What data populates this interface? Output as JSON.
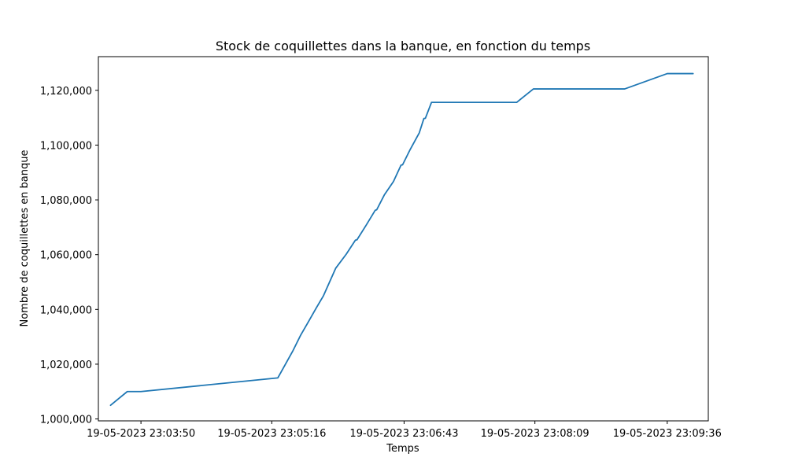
{
  "chart_data": {
    "type": "line",
    "title": "Stock de coquillettes dans la banque, en fonction du temps",
    "xlabel": "Temps",
    "ylabel": "Nombre de coquillettes en banque",
    "x_axis": {
      "scale": "time",
      "range": [
        "19-05-2023 23:03:22",
        "19-05-2023 23:10:03"
      ],
      "ticks": [
        {
          "value": "19-05-2023 23:03:50",
          "label": "19-05-2023 23:03:50"
        },
        {
          "value": "19-05-2023 23:05:16",
          "label": "19-05-2023 23:05:16"
        },
        {
          "value": "19-05-2023 23:06:43",
          "label": "19-05-2023 23:06:43"
        },
        {
          "value": "19-05-2023 23:08:09",
          "label": "19-05-2023 23:08:09"
        },
        {
          "value": "19-05-2023 23:09:36",
          "label": "19-05-2023 23:09:36"
        }
      ]
    },
    "y_axis": {
      "scale": "linear",
      "range": [
        999300,
        1132300
      ],
      "ticks": [
        {
          "value": 1000000,
          "label": "1,000,000"
        },
        {
          "value": 1020000,
          "label": "1,020,000"
        },
        {
          "value": 1040000,
          "label": "1,040,000"
        },
        {
          "value": 1060000,
          "label": "1,060,000"
        },
        {
          "value": 1080000,
          "label": "1,080,000"
        },
        {
          "value": 1100000,
          "label": "1,100,000"
        },
        {
          "value": 1120000,
          "label": "1,120,000"
        }
      ]
    },
    "grid": false,
    "legend": "none",
    "series": [
      {
        "color": "#1f77b4",
        "points": [
          {
            "x": "19-05-2023 23:03:30",
            "y": 1005000
          },
          {
            "x": "19-05-2023 23:03:41",
            "y": 1010000
          },
          {
            "x": "19-05-2023 23:03:50",
            "y": 1010000
          },
          {
            "x": "19-05-2023 23:05:20",
            "y": 1015000
          },
          {
            "x": "19-05-2023 23:05:25",
            "y": 1020000
          },
          {
            "x": "19-05-2023 23:05:30",
            "y": 1025000
          },
          {
            "x": "19-05-2023 23:05:35",
            "y": 1030600
          },
          {
            "x": "19-05-2023 23:05:40",
            "y": 1035400
          },
          {
            "x": "19-05-2023 23:05:45",
            "y": 1040300
          },
          {
            "x": "19-05-2023 23:05:50",
            "y": 1045000
          },
          {
            "x": "19-05-2023 23:05:58",
            "y": 1055000
          },
          {
            "x": "19-05-2023 23:06:05",
            "y": 1060200
          },
          {
            "x": "19-05-2023 23:06:11",
            "y": 1065300
          },
          {
            "x": "19-05-2023 23:06:12",
            "y": 1065400
          },
          {
            "x": "19-05-2023 23:06:18",
            "y": 1070700
          },
          {
            "x": "19-05-2023 23:06:24",
            "y": 1076200
          },
          {
            "x": "19-05-2023 23:06:25",
            "y": 1076400
          },
          {
            "x": "19-05-2023 23:06:30",
            "y": 1081800
          },
          {
            "x": "19-05-2023 23:06:36",
            "y": 1086700
          },
          {
            "x": "19-05-2023 23:06:41",
            "y": 1092700
          },
          {
            "x": "19-05-2023 23:06:42",
            "y": 1092800
          },
          {
            "x": "19-05-2023 23:06:47",
            "y": 1098400
          },
          {
            "x": "19-05-2023 23:06:53",
            "y": 1104500
          },
          {
            "x": "19-05-2023 23:06:56",
            "y": 1109700
          },
          {
            "x": "19-05-2023 23:06:57",
            "y": 1109800
          },
          {
            "x": "19-05-2023 23:07:01",
            "y": 1115600
          },
          {
            "x": "19-05-2023 23:07:57",
            "y": 1115600
          },
          {
            "x": "19-05-2023 23:08:08",
            "y": 1120500
          },
          {
            "x": "19-05-2023 23:09:08",
            "y": 1120500
          },
          {
            "x": "19-05-2023 23:09:36",
            "y": 1126100
          },
          {
            "x": "19-05-2023 23:09:53",
            "y": 1126100
          }
        ]
      }
    ]
  }
}
